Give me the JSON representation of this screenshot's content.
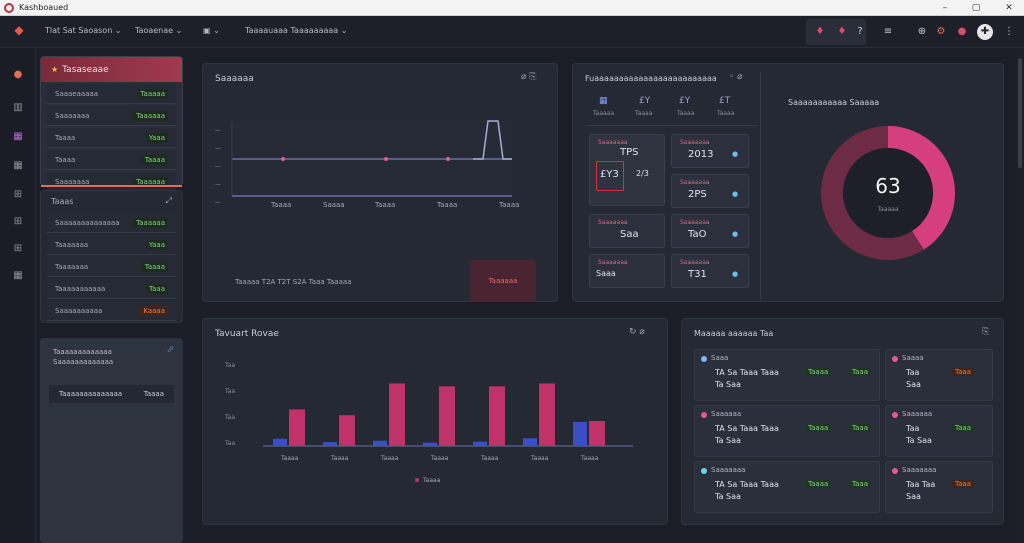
{
  "window": {
    "title": "Kashboaued",
    "controls": [
      "–",
      "▢",
      "✕"
    ]
  },
  "topbar": {
    "menus": [
      "Tlat Sat Saoason ⌄",
      "Taoaenae ⌄",
      "▣ ⌄",
      "Taaaauaaa Taaaaaaaaa ⌄"
    ],
    "right_icons": [
      "bell-icon",
      "flame-icon",
      "chat-icon",
      "list-icon",
      "user-icon",
      "settings-icon",
      "avatar-icon"
    ]
  },
  "sidebar": {
    "items": [
      "user",
      "grid-a",
      "grid-b",
      "grid-c",
      "grid-d",
      "grid-e",
      "grid-f"
    ]
  },
  "left_panel": {
    "header": "Tasaseaae",
    "rows": [
      {
        "label": "Saaaeaaaaa",
        "value": "Taaaaa"
      },
      {
        "label": "Saaaaaaa",
        "value": "Taaaaaa"
      },
      {
        "label": "Taaaa",
        "value": "Yaaa"
      },
      {
        "label": "Taaaa",
        "value": "Taaaa"
      },
      {
        "label": "Saaaaaaa",
        "value": "Taaaaaa"
      }
    ]
  },
  "left_panel2": {
    "header": "Taaas",
    "rows": [
      {
        "label": "Saaaaaaaaaaaaaa",
        "value": "Taaaaaa"
      },
      {
        "label": "Taaaaaaa",
        "value": "Yaaa"
      },
      {
        "label": "Taaaaaaa",
        "value": "Taaaa"
      },
      {
        "label": "Taaaaaaaaaaa",
        "value": "Taaa"
      },
      {
        "label": "Saaaaaaaaaa",
        "value": "Kaaaa"
      }
    ]
  },
  "left_panel3": {
    "head_line1": "Taaaaaaaaaaaaa",
    "head_line2": "Saaaaaaaaaaaaa",
    "row_label": "Taaaaaaaaaaaaaa",
    "row_value": "Taaaa"
  },
  "timeline_card": {
    "title": "Saaaaaa",
    "x_labels": [
      "Taaaa",
      "Saaaa",
      "Taaaa",
      "Taaaa",
      "Taaaa"
    ],
    "footer": "Taaaaa  T2A  T2T  S2A  Taaa  Taaaaa",
    "action": "Taaaaaa"
  },
  "stats_card": {
    "title": "Fuaaaaaaaaaaaaaaaaaaaaaaaaa",
    "tabs": [
      {
        "icon": "▦",
        "sub": "Taaaaa"
      },
      {
        "icon": "£Y",
        "sub": "Taaaa"
      },
      {
        "icon": "£Y",
        "sub": "Taaaa"
      },
      {
        "icon": "£T",
        "sub": "Taaaa"
      }
    ],
    "boxes": [
      {
        "label": "Saaaaaaa",
        "value": "TPS",
        "chip": ""
      },
      {
        "label": "Saaaaaaa",
        "value": "2013",
        "chip": "●"
      },
      {
        "label": "",
        "value": "£Y3",
        "chip": ""
      },
      {
        "label": "",
        "value": "2/3",
        "chip": ""
      },
      {
        "label": "Saaaaaaa",
        "value": "Saa",
        "chip": ""
      },
      {
        "label": "Saaaaaaa",
        "value": "2PS",
        "chip": "●"
      },
      {
        "label": "Saaaaaaa",
        "value": "Saaaa",
        "chip": ""
      },
      {
        "label": "Saaaaaaa",
        "value": "TaO",
        "chip": "●"
      },
      {
        "label": "Saaaaaaa",
        "value": "Saaa",
        "chip": ""
      },
      {
        "label": "Saaaaaaa",
        "value": "T31",
        "chip": "●"
      }
    ]
  },
  "donut_card": {
    "title": "Saaaaaaaaaaa  Saaaaa",
    "center_value": "63",
    "center_sub": "Taaaaa",
    "percent": 0.63,
    "colors": {
      "fill": "#d63f7e",
      "track": "#6e2b45",
      "hole": "#1e2029"
    }
  },
  "bar_card": {
    "title": "Tavuart Rovae",
    "legend": "Taaaa",
    "chart_data": {
      "type": "bar",
      "categories": [
        "Taaaa",
        "Taaaa",
        "Taaaa",
        "Taaaa",
        "Taaaa",
        "Taaaa",
        "Taaaa"
      ],
      "series": [
        {
          "values": [
            0.75,
            0.4,
            0.55,
            0.35,
            0.45,
            0.8,
            2.5
          ],
          "color": "#3a4fc4"
        },
        {
          "values": [
            3.8,
            3.2,
            6.5,
            6.2,
            6.2,
            6.5,
            2.6
          ],
          "color": "#c0326a"
        }
      ],
      "ylim": [
        0,
        8
      ],
      "y_ticks": [
        "Taa",
        "Taa",
        "Taa",
        "Taa"
      ]
    }
  },
  "monitor_card": {
    "title": "Maaaaa aaaaaa Taa",
    "items": [
      {
        "title": "Saaa",
        "line1": "TA Sa Taaa Taaa",
        "line2": "Ta Saa",
        "pills": [
          "Taaaa",
          "Taaa"
        ],
        "pill_color": "green"
      },
      {
        "title": "Saaaa",
        "line1": "Taa",
        "line2": "Saa",
        "pills": [
          "Taaa"
        ],
        "pill_color": "orange"
      },
      {
        "title": "Saaaaaa",
        "line1": "TA Sa Taaa Taaa",
        "line2": "Ta Saa",
        "pills": [
          "Taaaa",
          "Taaa"
        ],
        "pill_color": "green"
      },
      {
        "title": "Saaaaaa",
        "line1": "Taa",
        "line2": "Ta Saa",
        "pills": [
          "Taaa"
        ],
        "pill_color": "green"
      },
      {
        "title": "Saaaaaaa",
        "line1": "TA Sa Taaa Taaa",
        "line2": "Ta Saa",
        "pills": [
          "Taaaa",
          "Taaa"
        ],
        "pill_color": "green"
      },
      {
        "title": "Saaaaaaa",
        "line1": "Taa Taa",
        "line2": "Saa",
        "pills": [
          "Taaa"
        ],
        "pill_color": "orange"
      }
    ]
  }
}
